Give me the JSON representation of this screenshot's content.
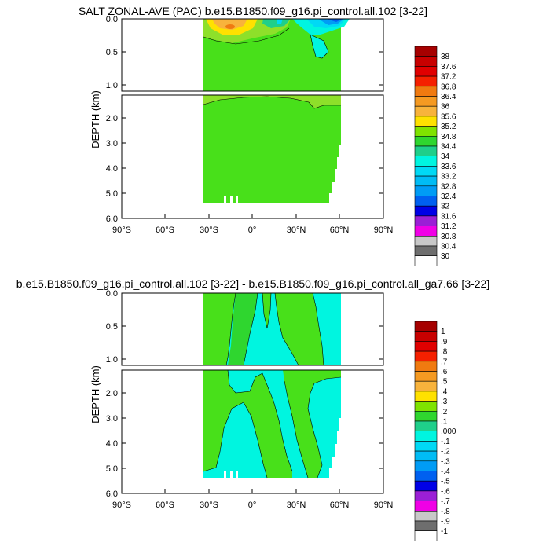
{
  "chart_data": [
    {
      "type": "contour",
      "title": "SALT ZONAL-AVE (PAC) b.e15.B1850.f09_g16.pi_control.all.102 [3-22]",
      "ylabel": "DEPTH (km)",
      "x_ticks": [
        "90°S",
        "60°S",
        "30°S",
        "0°",
        "30°N",
        "60°N",
        "90°N"
      ],
      "y_ticks_upper": [
        "0.0",
        "0.5",
        "1.0"
      ],
      "y_ticks_lower": [
        "2.0",
        "3.0",
        "4.0",
        "5.0",
        "6.0"
      ],
      "xlim": [
        -90,
        90
      ],
      "ylim_upper_km": [
        0,
        1.1
      ],
      "ylim_lower_km": [
        1.1,
        6.0
      ],
      "data_lat_range": [
        -33,
        62
      ],
      "data_max_depth_km": 5.4,
      "colorbar_levels": [
        "38",
        "37.6",
        "37.2",
        "36.8",
        "36.4",
        "36",
        "35.6",
        "35.2",
        "34.8",
        "34.4",
        "34",
        "33.6",
        "33.2",
        "32.8",
        "32.4",
        "32",
        "31.6",
        "31.2",
        "30.8",
        "30.4",
        "30"
      ],
      "colorbar_colors": [
        "#a60000",
        "#c80000",
        "#e00000",
        "#f52000",
        "#f07a10",
        "#f59a22",
        "#f8b33c",
        "#ffe100",
        "#7fe300",
        "#2fd62f",
        "#1fcf8a",
        "#00f5e0",
        "#00d9f5",
        "#00bcf5",
        "#009cf5",
        "#0060f0",
        "#0000e6",
        "#9b1fd6",
        "#f000e6",
        "#c8c8c8",
        "#6e6e6e",
        "#ffffff"
      ],
      "dominant_value_range": [
        34.4,
        34.8
      ]
    },
    {
      "type": "contour",
      "title": "b.e15.B1850.f09_g16.pi_control.all.102 [3-22] - b.e15.B1850.f09_g16.pi_control.all_ga7.66 [3-22]",
      "ylabel": "DEPTH (km)",
      "x_ticks": [
        "90°S",
        "60°S",
        "30°S",
        "0°",
        "30°N",
        "60°N",
        "90°N"
      ],
      "y_ticks_upper": [
        "0.0",
        "0.5",
        "1.0"
      ],
      "y_ticks_lower": [
        "2.0",
        "3.0",
        "4.0",
        "5.0",
        "6.0"
      ],
      "xlim": [
        -90,
        90
      ],
      "ylim_upper_km": [
        0,
        1.1
      ],
      "ylim_lower_km": [
        1.1,
        6.0
      ],
      "data_lat_range": [
        -33,
        62
      ],
      "data_max_depth_km": 5.4,
      "colorbar_levels": [
        "1",
        ".9",
        ".8",
        ".7",
        ".6",
        ".5",
        ".4",
        ".3",
        ".2",
        ".1",
        ".000",
        "-.1",
        "-.2",
        "-.3",
        "-.4",
        "-.5",
        "-.6",
        "-.7",
        "-.8",
        "-.9",
        "-1"
      ],
      "colorbar_colors": [
        "#a60000",
        "#c80000",
        "#e00000",
        "#f52000",
        "#f07a10",
        "#f59a22",
        "#f8b33c",
        "#ffe100",
        "#7fe300",
        "#2fd62f",
        "#1fcf8a",
        "#00f5e0",
        "#00d9f5",
        "#00bcf5",
        "#009cf5",
        "#0060f0",
        "#0000e6",
        "#9b1fd6",
        "#f000e6",
        "#c8c8c8",
        "#6e6e6e",
        "#ffffff"
      ],
      "dominant_value_ranges": [
        [
          0,
          0.1
        ],
        [
          0.1,
          0.2
        ]
      ]
    }
  ]
}
